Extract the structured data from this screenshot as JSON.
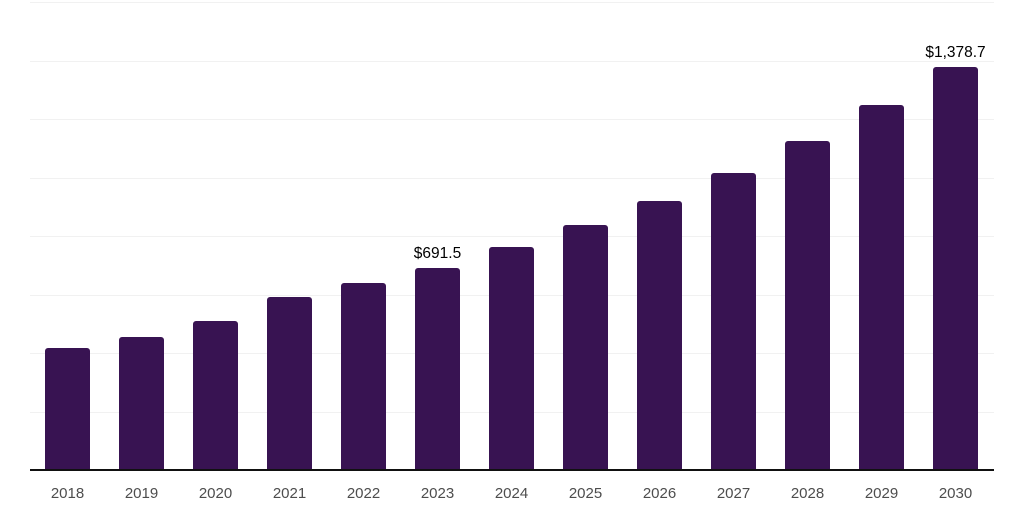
{
  "chart_data": {
    "type": "bar",
    "title": "",
    "xlabel": "",
    "ylabel": "",
    "categories": [
      "2018",
      "2019",
      "2020",
      "2021",
      "2022",
      "2023",
      "2024",
      "2025",
      "2026",
      "2027",
      "2028",
      "2029",
      "2030"
    ],
    "values": [
      417.0,
      455.0,
      509.5,
      592.5,
      638.0,
      691.5,
      761.5,
      838.0,
      921.0,
      1016.5,
      1126.0,
      1248.0,
      1378.7
    ],
    "data_labels": [
      "",
      "",
      "",
      "",
      "",
      "$691.5",
      "",
      "",
      "",
      "",
      "",
      "",
      "$1,378.7"
    ],
    "ylim": [
      0,
      1600
    ],
    "gridline_step": 200,
    "grid": true,
    "legend_position": "none",
    "colors": {
      "bar": "#381352",
      "gridline": "#f1f1f1",
      "axis_line": "#111111",
      "tick_label": "#4d4d4d",
      "data_label": "#000000",
      "background": "#ffffff"
    }
  }
}
